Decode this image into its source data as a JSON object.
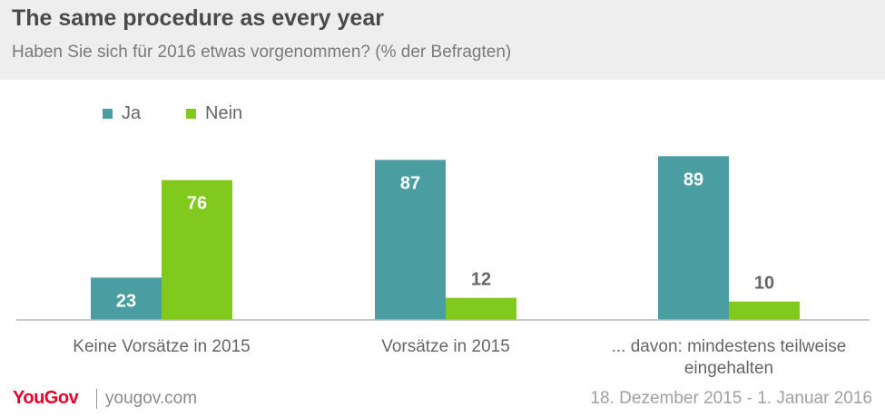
{
  "header": {
    "title": "The same procedure as every year",
    "subtitle": "Haben Sie sich für 2016 etwas vorgenommen? (% der Befragten)"
  },
  "footer": {
    "brand": "YouGov",
    "site": "yougov.com",
    "date_range": "18. Dezember 2015 - 1. Januar 2016"
  },
  "chart_data": {
    "type": "bar",
    "title": "The same procedure as every year",
    "subtitle": "Haben Sie sich für 2016 etwas vorgenommen? (% der Befragten)",
    "categories": [
      "Keine Vorsätze in 2015",
      "Vorsätze in 2015",
      "... davon: mindestens teilweise eingehalten"
    ],
    "series": [
      {
        "name": "Ja",
        "color": "#4a9ea1",
        "values": [
          23,
          87,
          89
        ]
      },
      {
        "name": "Nein",
        "color": "#82c91e",
        "values": [
          76,
          12,
          10
        ]
      }
    ],
    "ylim": [
      0,
      100
    ],
    "grid": false,
    "legend": "top-left",
    "xlabel": "",
    "ylabel": ""
  }
}
